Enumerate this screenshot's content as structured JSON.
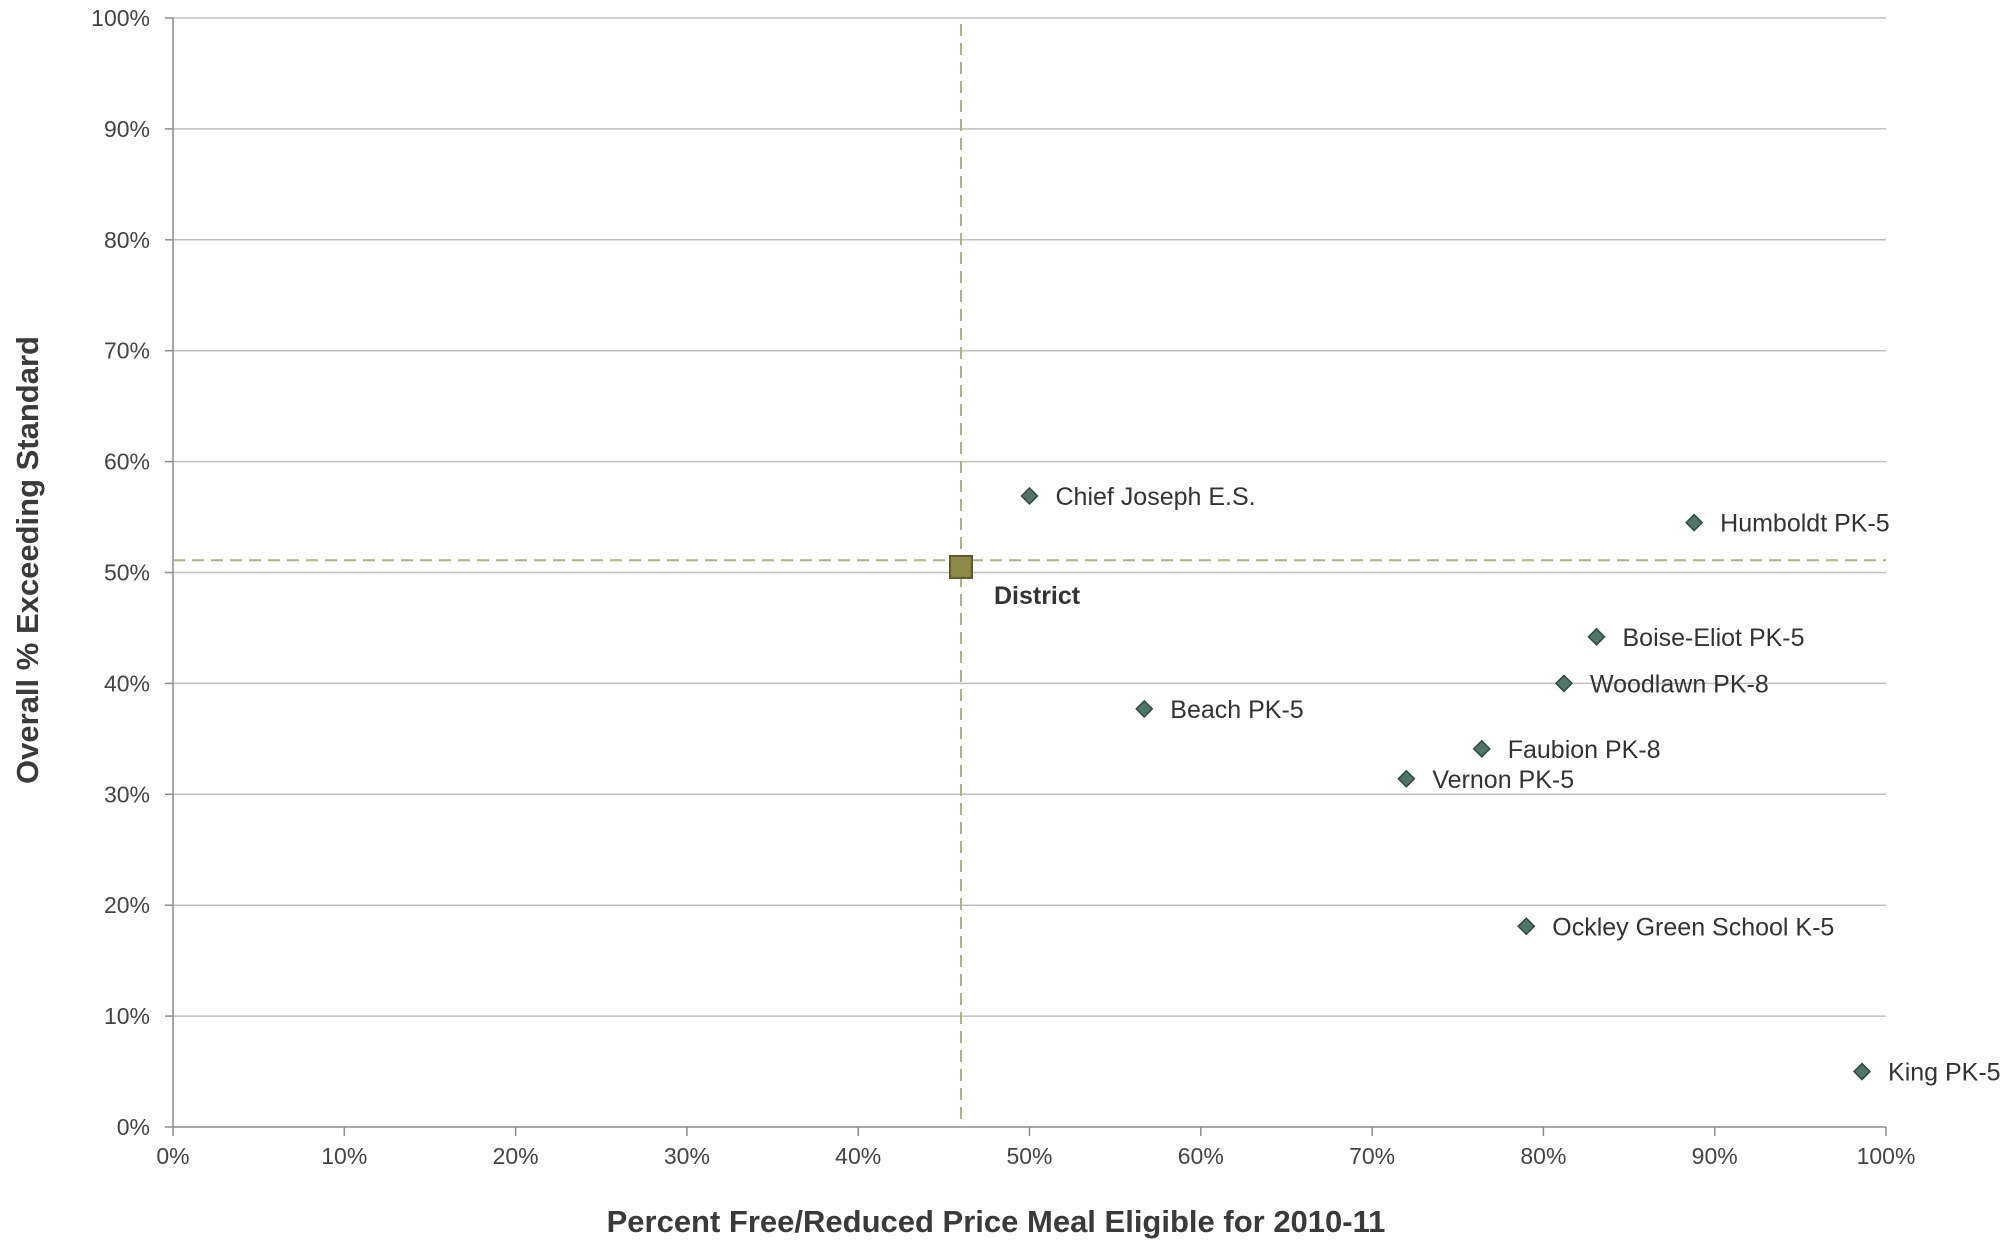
{
  "chart_data": {
    "type": "scatter",
    "title": "",
    "xlabel": "Percent Free/Reduced Price Meal Eligible for 2010-11",
    "ylabel": "Overall % Exceeding Standard",
    "xlim": [
      0,
      100
    ],
    "ylim": [
      0,
      100
    ],
    "x_ticks": [
      "0%",
      "10%",
      "20%",
      "30%",
      "40%",
      "50%",
      "60%",
      "70%",
      "80%",
      "90%",
      "100%"
    ],
    "y_ticks": [
      "0%",
      "10%",
      "20%",
      "30%",
      "40%",
      "50%",
      "60%",
      "70%",
      "80%",
      "90%",
      "100%"
    ],
    "grid": "horizontal",
    "legend": "none",
    "points": [
      {
        "label": "Chief Joseph E.S.",
        "x": 50.0,
        "y": 56.9
      },
      {
        "label": "Humboldt PK-5",
        "x": 88.8,
        "y": 54.5
      },
      {
        "label": "Boise-Eliot PK-5",
        "x": 83.1,
        "y": 44.2
      },
      {
        "label": "Woodlawn PK-8",
        "x": 81.2,
        "y": 40.0
      },
      {
        "label": "Beach PK-5",
        "x": 56.7,
        "y": 37.7
      },
      {
        "label": "Faubion PK-8",
        "x": 76.4,
        "y": 34.1
      },
      {
        "label": "Vernon PK-5",
        "x": 72.0,
        "y": 31.4
      },
      {
        "label": "Ockley Green School K-5",
        "x": 79.0,
        "y": 18.1
      },
      {
        "label": "King PK-5",
        "x": 98.6,
        "y": 5.0
      }
    ],
    "district": {
      "label": "District",
      "x": 46.0,
      "y": 50.5
    },
    "reference_lines": {
      "x": 46.0,
      "y": 51.1
    },
    "colors": {
      "point_fill": "#4f7668",
      "point_stroke": "#2f4a40",
      "district_fill": "#8c8a45",
      "district_stroke": "#5b5a2a",
      "reference_line": "#a9b48a",
      "grid": "#bfbfbf",
      "axis": "#8c8c8c"
    }
  }
}
